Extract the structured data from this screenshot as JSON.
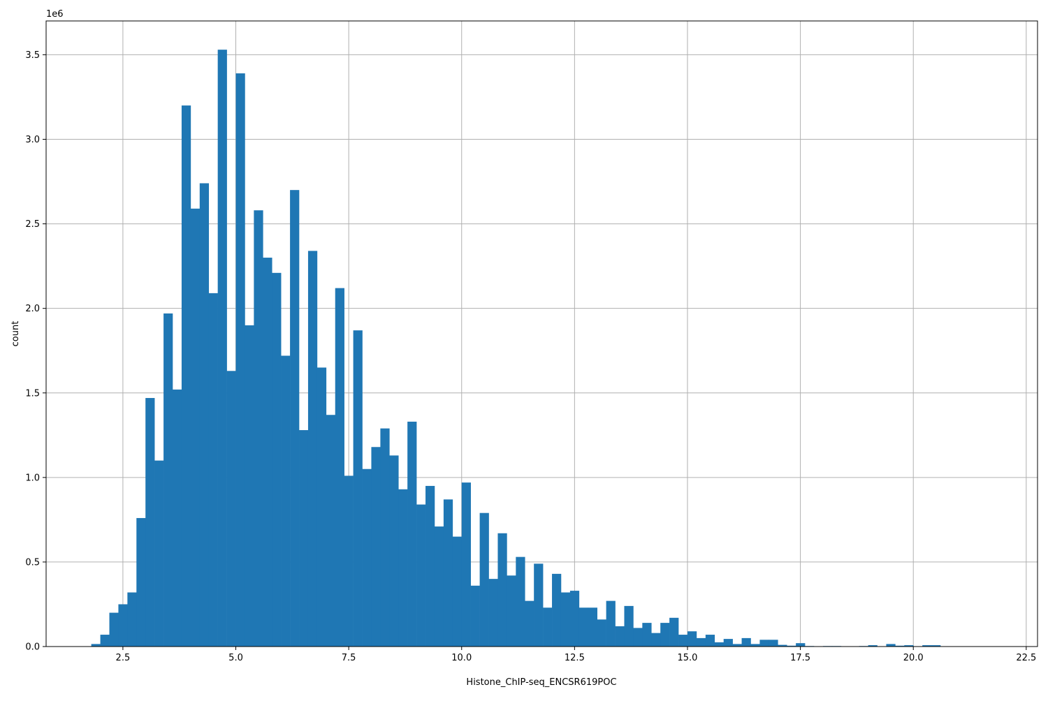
{
  "chart_data": {
    "type": "bar",
    "subtype": "histogram",
    "xlabel": "Histone_ChIP-seq_ENCSR619POC",
    "ylabel": "count",
    "y_offset_text": "1e6",
    "xlim": [
      0.8,
      22.75
    ],
    "ylim": [
      0,
      3700000
    ],
    "grid": true,
    "bar_color": "#1f77b4",
    "grid_color": "#b0b0b0",
    "x_ticks": [
      2.5,
      5.0,
      7.5,
      10.0,
      12.5,
      15.0,
      17.5,
      20.0,
      22.5
    ],
    "x_tick_labels": [
      "2.5",
      "5.0",
      "7.5",
      "10.0",
      "12.5",
      "15.0",
      "17.5",
      "20.0",
      "22.5"
    ],
    "y_ticks": [
      0,
      500000,
      1000000,
      1500000,
      2000000,
      2500000,
      3000000,
      3500000
    ],
    "y_tick_labels": [
      "0.0",
      "0.5",
      "1.0",
      "1.5",
      "2.0",
      "2.5",
      "3.0",
      "3.5"
    ],
    "bin_start": 1.8,
    "bin_width": 0.2,
    "values": [
      15000,
      70000,
      200000,
      250000,
      320000,
      760000,
      1470000,
      1100000,
      1970000,
      1520000,
      3200000,
      2590000,
      2740000,
      2090000,
      3530000,
      1630000,
      3390000,
      1900000,
      2580000,
      2300000,
      2210000,
      1720000,
      2700000,
      1280000,
      2340000,
      1650000,
      1370000,
      2120000,
      1010000,
      1870000,
      1050000,
      1180000,
      1290000,
      1130000,
      930000,
      1330000,
      840000,
      950000,
      710000,
      870000,
      650000,
      970000,
      360000,
      790000,
      400000,
      670000,
      420000,
      530000,
      270000,
      490000,
      230000,
      430000,
      320000,
      330000,
      230000,
      230000,
      160000,
      270000,
      120000,
      240000,
      110000,
      140000,
      80000,
      140000,
      170000,
      70000,
      90000,
      50000,
      70000,
      25000,
      45000,
      15000,
      50000,
      15000,
      40000,
      40000,
      10000,
      5000,
      20000,
      3000,
      0,
      3000,
      3000,
      0,
      0,
      3000,
      8000,
      0,
      15000,
      5000,
      8000,
      0,
      8000,
      8000
    ]
  }
}
